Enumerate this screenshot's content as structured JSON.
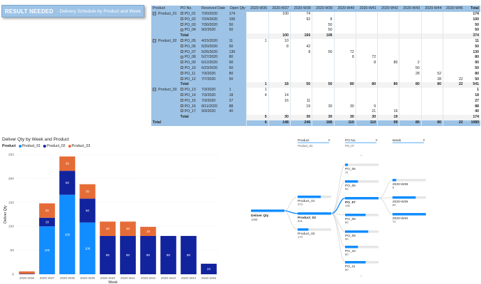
{
  "banner": {
    "title": "RESULT NEEDED",
    "subtitle": "- Delivery Schedule by Product and Week"
  },
  "matrix": {
    "headers": [
      "Product",
      "PO No.",
      "Received Date",
      "Open Qty",
      "2020-W36",
      "2020-W37",
      "2020-W38",
      "2020-W39",
      "2020-W40",
      "2020-W41",
      "2020-W42",
      "2020-W43",
      "2020-W44",
      "2020-W45",
      "Total"
    ],
    "rows": [
      {
        "product": "Product_01",
        "po": "PO_01",
        "date": "7/20/2020",
        "qty": "174",
        "w": [
          "",
          "100",
          "74",
          "",
          "",
          "",
          "",
          "",
          "",
          ""
        ],
        "total": "174"
      },
      {
        "product": "",
        "po": "PO_02",
        "date": "7/24/2020",
        "qty": "100",
        "w": [
          "",
          "",
          "92",
          "8",
          "",
          "",
          "",
          "",
          "",
          ""
        ],
        "total": "100"
      },
      {
        "product": "",
        "po": "PO_03",
        "date": "7/30/2020",
        "qty": "50",
        "w": [
          "",
          "",
          "",
          "50",
          "",
          "",
          "",
          "",
          "",
          ""
        ],
        "total": "50"
      },
      {
        "product": "",
        "po": "PO_04",
        "date": "9/2/2020",
        "qty": "50",
        "w": [
          "",
          "",
          "",
          "50",
          "",
          "",
          "",
          "",
          "",
          ""
        ],
        "total": "50"
      },
      {
        "product": "",
        "po": "Total",
        "date": "",
        "qty": "",
        "w": [
          "",
          "100",
          "166",
          "108",
          "",
          "",
          "",
          "",
          "",
          ""
        ],
        "total": "374",
        "subtotal": true
      },
      {
        "product": "Product_02",
        "po": "PO_05",
        "date": "4/15/2020",
        "qty": "11",
        "w": [
          "1",
          "10",
          "",
          "",
          "",
          "",
          "",
          "",
          "",
          ""
        ],
        "total": "11"
      },
      {
        "product": "",
        "po": "PO_06",
        "date": "5/20/2020",
        "qty": "50",
        "w": [
          "",
          "8",
          "42",
          "",
          "",
          "",
          "",
          "",
          "",
          ""
        ],
        "total": "50"
      },
      {
        "product": "",
        "po": "PO_07",
        "date": "5/26/2020",
        "qty": "130",
        "w": [
          "",
          "",
          "8",
          "50",
          "72",
          "",
          "",
          "",
          "",
          ""
        ],
        "total": "130"
      },
      {
        "product": "",
        "po": "PO_08",
        "date": "5/27/2020",
        "qty": "80",
        "w": [
          "",
          "",
          "",
          "",
          "8",
          "72",
          "",
          "",
          "",
          ""
        ],
        "total": "80"
      },
      {
        "product": "",
        "po": "PO_09",
        "date": "6/12/2020",
        "qty": "90",
        "w": [
          "",
          "",
          "",
          "",
          "",
          "8",
          "80",
          "2",
          "",
          ""
        ],
        "total": "90"
      },
      {
        "product": "",
        "po": "PO_10",
        "date": "6/23/2020",
        "qty": "50",
        "w": [
          "",
          "",
          "",
          "",
          "",
          "",
          "",
          "50",
          "",
          ""
        ],
        "total": "50"
      },
      {
        "product": "",
        "po": "PO_11",
        "date": "7/3/2020",
        "qty": "80",
        "w": [
          "",
          "",
          "",
          "",
          "",
          "",
          "",
          "28",
          "52",
          ""
        ],
        "total": "80"
      },
      {
        "product": "",
        "po": "PO_12",
        "date": "7/7/2020",
        "qty": "50",
        "w": [
          "",
          "",
          "",
          "",
          "",
          "",
          "",
          "",
          "28",
          "22"
        ],
        "total": "50"
      },
      {
        "product": "",
        "po": "Total",
        "date": "",
        "qty": "",
        "w": [
          "1",
          "18",
          "50",
          "50",
          "80",
          "80",
          "80",
          "80",
          "80",
          "22"
        ],
        "total": "541",
        "subtotal": true
      },
      {
        "product": "Product_03",
        "po": "PO_13",
        "date": "7/3/2020",
        "qty": "1",
        "w": [
          "1",
          "",
          "",
          "",
          "",
          "",
          "",
          "",
          "",
          ""
        ],
        "total": "1"
      },
      {
        "product": "",
        "po": "PO_14",
        "date": "7/3/2020",
        "qty": "18",
        "w": [
          "4",
          "14",
          "",
          "",
          "",
          "",
          "",
          "",
          "",
          ""
        ],
        "total": "18"
      },
      {
        "product": "",
        "po": "PO_15",
        "date": "7/3/2020",
        "qty": "27",
        "w": [
          "",
          "16",
          "11",
          "",
          "",
          "",
          "",
          "",
          "",
          ""
        ],
        "total": "27"
      },
      {
        "product": "",
        "po": "PO_16",
        "date": "8/11/2020",
        "qty": "88",
        "w": [
          "",
          "",
          "19",
          "30",
          "30",
          "9",
          "",
          "",
          "",
          ""
        ],
        "total": "88"
      },
      {
        "product": "",
        "po": "PO_17",
        "date": "9/3/2020",
        "qty": "40",
        "w": [
          "",
          "",
          "",
          "",
          "",
          "21",
          "19",
          "",
          "",
          ""
        ],
        "total": "40"
      },
      {
        "product": "",
        "po": "Total",
        "date": "",
        "qty": "",
        "w": [
          "5",
          "30",
          "30",
          "30",
          "30",
          "30",
          "19",
          "",
          "",
          ""
        ],
        "total": "174",
        "subtotal": true
      }
    ],
    "grand_total": {
      "label": "Total",
      "w": [
        "6",
        "148",
        "246",
        "188",
        "110",
        "110",
        "99",
        "80",
        "80",
        "22"
      ],
      "total": "1089"
    }
  },
  "chart": {
    "title": "Deliver Qty by Week and Product",
    "legend_label": "Product",
    "colors": {
      "Product_01": "#1AAB40",
      "Product_02": "#12239E",
      "Product_03": "#E66C37",
      "Product_01_actual": "#118DFF"
    }
  },
  "chart_data": {
    "type": "bar",
    "stacked": true,
    "categories": [
      "2020-W36",
      "2020-W37",
      "2020-W38",
      "2020-W39",
      "2020-W40",
      "2020-W41",
      "2020-W42",
      "2020-W43",
      "2020-W44",
      "2020-W45"
    ],
    "series": [
      {
        "name": "Product_01",
        "color": "#118DFF",
        "values": [
          0,
          100,
          166,
          108,
          0,
          0,
          0,
          0,
          0,
          0
        ]
      },
      {
        "name": "Product_02",
        "color": "#12239E",
        "values": [
          1,
          18,
          50,
          50,
          80,
          80,
          80,
          80,
          80,
          22
        ]
      },
      {
        "name": "Product_03",
        "color": "#E66C37",
        "values": [
          5,
          30,
          30,
          30,
          30,
          30,
          19,
          0,
          0,
          0
        ]
      }
    ],
    "xlabel": "Week",
    "ylabel": "Deliver Qty",
    "ylim": [
      0,
      250
    ],
    "yticks": [
      0,
      50,
      100,
      150,
      200,
      250
    ]
  },
  "decomp": {
    "headers": [
      "Deliver Qty",
      "Product",
      "PO No.",
      "Week"
    ],
    "subheaders": [
      "",
      "Product_02",
      "PO_07",
      ""
    ],
    "root": {
      "label": "Deliver Qty",
      "value": "1089"
    },
    "products": [
      {
        "label": "Product_01",
        "value": "374"
      },
      {
        "label": "Product_02",
        "value": "541"
      },
      {
        "label": "Product_03",
        "value": "174"
      }
    ],
    "pos": [
      {
        "label": "PO_05",
        "value": "11"
      },
      {
        "label": "PO_06",
        "value": "50"
      },
      {
        "label": "PO_07",
        "value": "130"
      },
      {
        "label": "PO_08",
        "value": "80"
      },
      {
        "label": "PO_09",
        "value": "90"
      },
      {
        "label": "PO_10",
        "value": "50"
      },
      {
        "label": "PO_11",
        "value": "80"
      }
    ],
    "weeks": [
      {
        "label": "2020-W38",
        "value": "8"
      },
      {
        "label": "2020-W39",
        "value": "50"
      },
      {
        "label": "2020-W40",
        "value": "72"
      }
    ]
  }
}
